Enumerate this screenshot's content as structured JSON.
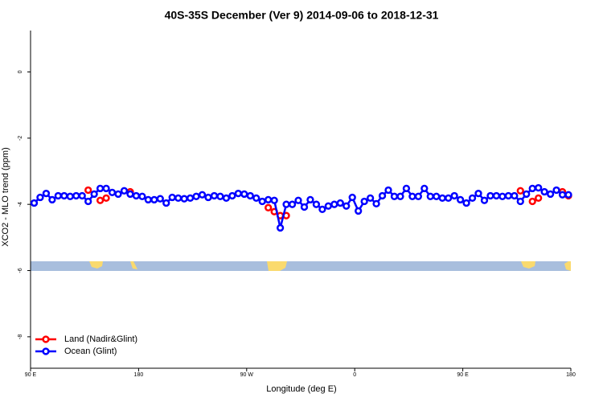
{
  "chart_data": {
    "type": "line",
    "title": "40S-35S December (Ver 9)   2014-09-06 to 2018-12-31",
    "xlabel": "Longitude (deg E)",
    "ylabel": "XCO2 - MLO trend (ppm)",
    "xlim": [
      90,
      540
    ],
    "ylim": [
      -8.95,
      1.25
    ],
    "xticks": [
      {
        "value": 90,
        "label": "90 E"
      },
      {
        "value": 180,
        "label": "180"
      },
      {
        "value": 270,
        "label": "90 W"
      },
      {
        "value": 360,
        "label": "0"
      },
      {
        "value": 450,
        "label": "90 E"
      },
      {
        "value": 540,
        "label": "180"
      }
    ],
    "yticks": [
      0,
      -2,
      -4,
      -6,
      -8
    ],
    "legend": "bottomleft",
    "series": [
      {
        "name": "Land (Nadir&Glint)",
        "color": "#ff0000",
        "x": [
          138,
          143,
          148,
          153,
          158,
          173,
          178,
          288,
          293,
          298,
          303,
          308,
          498,
          503,
          508,
          513,
          518,
          533,
          538
        ],
        "values": [
          -3.57,
          null,
          -3.88,
          -3.81,
          null,
          -3.62,
          null,
          -4.1,
          -4.22,
          -4.34,
          -4.34,
          null,
          -3.59,
          null,
          -3.91,
          -3.81,
          null,
          -3.62,
          -3.74
        ]
      },
      {
        "name": "Ocean (Glint)",
        "color": "#0000ff",
        "x": [
          93,
          98,
          103,
          108,
          113,
          118,
          123,
          128,
          133,
          138,
          143,
          148,
          153,
          158,
          163,
          168,
          173,
          178,
          183,
          188,
          193,
          198,
          203,
          208,
          213,
          218,
          223,
          228,
          233,
          238,
          243,
          248,
          253,
          258,
          263,
          268,
          273,
          278,
          283,
          288,
          293,
          298,
          303,
          308,
          313,
          318,
          323,
          328,
          333,
          338,
          343,
          348,
          353,
          358,
          363,
          368,
          373,
          378,
          383,
          388,
          393,
          398,
          403,
          408,
          413,
          418,
          423,
          428,
          433,
          438,
          443,
          448,
          453,
          458,
          463,
          468,
          473,
          478,
          483,
          488,
          493,
          498,
          503,
          508,
          513,
          518,
          523,
          528,
          533,
          538
        ],
        "values": [
          -3.96,
          -3.79,
          -3.67,
          -3.86,
          -3.74,
          -3.74,
          -3.76,
          -3.74,
          -3.74,
          -3.91,
          -3.69,
          -3.52,
          -3.52,
          -3.64,
          -3.69,
          -3.59,
          -3.69,
          -3.74,
          -3.76,
          -3.86,
          -3.86,
          -3.83,
          -3.96,
          -3.79,
          -3.81,
          -3.83,
          -3.81,
          -3.76,
          -3.71,
          -3.79,
          -3.74,
          -3.76,
          -3.81,
          -3.74,
          -3.67,
          -3.69,
          -3.74,
          -3.81,
          -3.91,
          -3.86,
          -3.88,
          -4.71,
          -4.0,
          -4.0,
          -3.88,
          -4.08,
          -3.86,
          -4.0,
          -4.15,
          -4.05,
          -4.0,
          -3.96,
          -4.05,
          -3.79,
          -4.2,
          -3.91,
          -3.81,
          -3.98,
          -3.74,
          -3.57,
          -3.76,
          -3.76,
          -3.52,
          -3.76,
          -3.76,
          -3.52,
          -3.76,
          -3.76,
          -3.81,
          -3.81,
          -3.74,
          -3.86,
          -3.96,
          -3.81,
          -3.67,
          -3.88,
          -3.74,
          -3.74,
          -3.76,
          -3.74,
          -3.74,
          -3.91,
          -3.69,
          -3.52,
          -3.5,
          -3.62,
          -3.69,
          -3.57,
          -3.71,
          -3.71
        ]
      }
    ]
  }
}
